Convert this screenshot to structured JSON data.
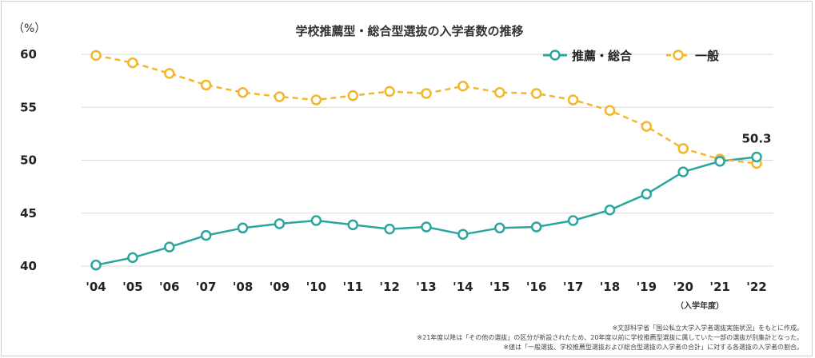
{
  "colors": {
    "teal": "#2aa59f",
    "yellow": "#f2b72a",
    "grid": "#d9d9d9"
  },
  "chart_data": {
    "type": "line",
    "title": "学校推薦型・総合型選抜の入学者数の推移",
    "ylabel": "（%）",
    "xlabel": "（入学年度）",
    "ylim": [
      40,
      60
    ],
    "yticks": [
      "60",
      "55",
      "50",
      "45",
      "40"
    ],
    "categories": [
      "'04",
      "'05",
      "'06",
      "'07",
      "'08",
      "'09",
      "'10",
      "'11",
      "'12",
      "'13",
      "'14",
      "'15",
      "'16",
      "'17",
      "'18",
      "'19",
      "'20",
      "'21",
      "'22"
    ],
    "series": [
      {
        "name": "推薦・総合",
        "color": "#2aa59f",
        "style": "solid",
        "values": [
          40.1,
          40.8,
          41.8,
          42.9,
          43.6,
          44.0,
          44.3,
          43.9,
          43.5,
          43.7,
          43.0,
          43.6,
          43.7,
          44.3,
          45.3,
          46.8,
          48.9,
          49.9,
          50.3
        ]
      },
      {
        "name": "一般",
        "color": "#f2b72a",
        "style": "dashed",
        "values": [
          59.9,
          59.2,
          58.2,
          57.1,
          56.4,
          56.0,
          55.7,
          56.1,
          56.5,
          56.3,
          57.0,
          56.4,
          56.3,
          55.7,
          54.7,
          53.2,
          51.1,
          50.1,
          49.7
        ]
      }
    ],
    "annotations": [
      {
        "series": 0,
        "index": 18,
        "text": "50.3"
      }
    ]
  },
  "notes": [
    "※文部科学省「国公私立大学入学者選抜実施状況」をもとに作成。",
    "※21年度以降は「その他の選抜」の区分が新設されたため、20年度以前に学校推薦型選抜に属していた一部の選抜が別集計となった。",
    "※値は「一般選抜、学校推薦型選抜および総合型選抜の入学者の合計」に対する各選抜の入学者の割合。"
  ]
}
